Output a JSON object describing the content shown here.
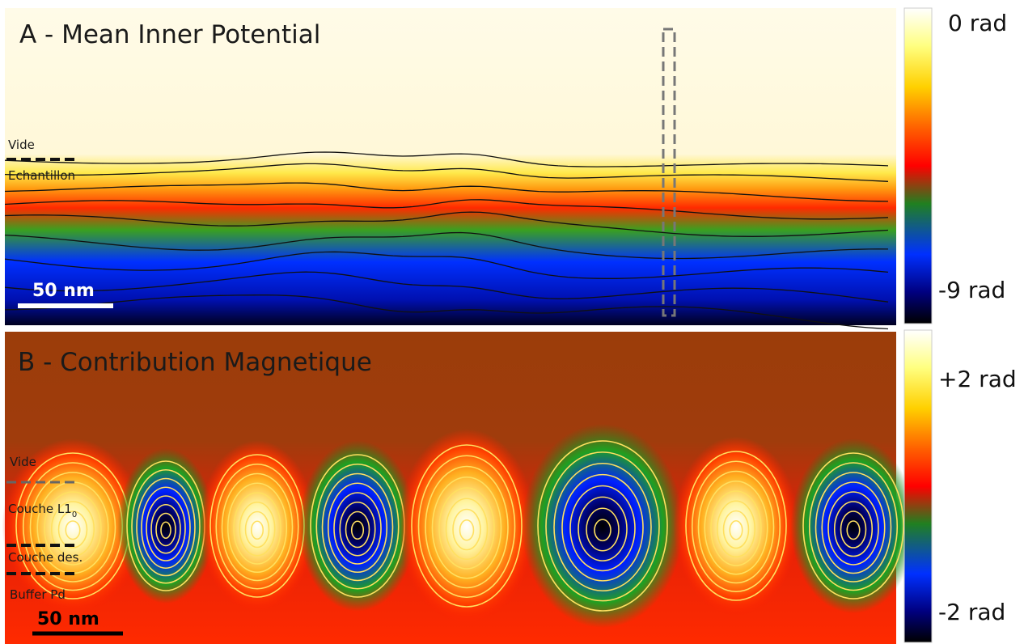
{
  "panels": [
    {
      "title": "A - Mean Inner Potential",
      "labels": [
        "Vide",
        "Echantillon"
      ],
      "scale_bar": "50 nm",
      "colorbar": {
        "top": "0 rad",
        "bottom": "-9 rad"
      }
    },
    {
      "title": "B - Contribution Magnetique",
      "labels": [
        "Vide",
        "Couche L1",
        "Couche des.",
        "Buffer Pd"
      ],
      "label_subscript": "0",
      "scale_bar": "50 nm",
      "colorbar": {
        "top": "+2 rad",
        "bottom": "-2 rad"
      }
    }
  ]
}
